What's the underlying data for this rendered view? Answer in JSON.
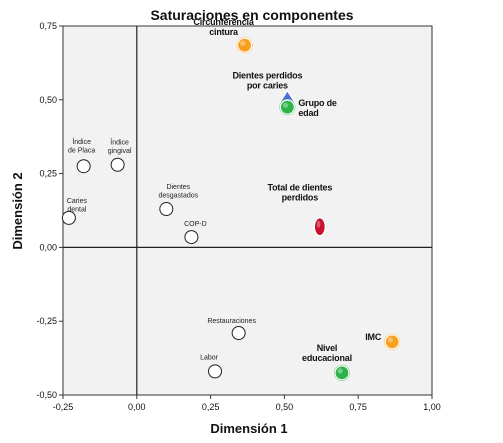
{
  "chart_data": {
    "type": "scatter",
    "title": "Saturaciones en componentes",
    "xlabel": "Dimensión 1",
    "ylabel": "Dimensión 2",
    "xlim": [
      -0.25,
      1.0
    ],
    "ylim": [
      -0.5,
      0.75
    ],
    "x_ticks": [
      "-0,25",
      "0,00",
      "0,25",
      "0,50",
      "0,75",
      "1,00"
    ],
    "y_ticks": [
      "0,75",
      "0,50",
      "0,25",
      "0,00",
      "-0,25",
      "-0,50"
    ],
    "x_tick_values": [
      -0.25,
      0.0,
      0.25,
      0.5,
      0.75,
      1.0
    ],
    "y_tick_values": [
      0.75,
      0.5,
      0.25,
      0.0,
      -0.25,
      -0.5
    ],
    "reference_lines": {
      "x": 0.0,
      "y": 0.0
    },
    "grid": false,
    "colors": {
      "orange": "#F7A01E",
      "green": "#2DB34A",
      "red": "#C8102E",
      "blue": "#4A6FD9",
      "open": "#ffffff",
      "background": "#F2F2F2"
    },
    "points": [
      {
        "label": [
          "Índice",
          "de Placa"
        ],
        "x": -0.18,
        "y": 0.275,
        "marker": "circle-open",
        "label_style": "small",
        "label_pos": "above-left"
      },
      {
        "label": [
          "Índice",
          "gingival"
        ],
        "x": -0.065,
        "y": 0.28,
        "marker": "circle-open",
        "label_style": "small",
        "label_pos": "above"
      },
      {
        "label": [
          "Caries",
          "dental"
        ],
        "x": -0.23,
        "y": 0.1,
        "marker": "circle-open",
        "label_style": "small",
        "label_pos": "above-right"
      },
      {
        "label": [
          "Dientes",
          "desgastados"
        ],
        "x": 0.1,
        "y": 0.13,
        "marker": "circle-open",
        "label_style": "small",
        "label_pos": "above-right"
      },
      {
        "label": [
          "COP-D"
        ],
        "x": 0.185,
        "y": 0.035,
        "marker": "circle-open",
        "label_style": "small",
        "label_pos": "above"
      },
      {
        "label": [
          "Restauraciones"
        ],
        "x": 0.345,
        "y": -0.29,
        "marker": "circle-open",
        "label_style": "small",
        "label_pos": "above-left"
      },
      {
        "label": [
          "Labor"
        ],
        "x": 0.265,
        "y": -0.42,
        "marker": "circle-open",
        "label_style": "small",
        "label_pos": "above-left"
      },
      {
        "label": [
          "Circunferencia",
          "cintura"
        ],
        "x": 0.365,
        "y": 0.685,
        "marker": "circle-orange",
        "label_style": "bold",
        "label_pos": "above-left"
      },
      {
        "label": [
          "Dientes perdidos",
          "por caries"
        ],
        "x": 0.51,
        "y": 0.505,
        "marker": "triangle-blue",
        "label_style": "bold",
        "label_pos": "above-left"
      },
      {
        "label": [
          "Grupo de",
          "edad"
        ],
        "x": 0.51,
        "y": 0.475,
        "marker": "circle-green",
        "label_style": "bold",
        "label_pos": "right"
      },
      {
        "label": [
          "Total de dientes",
          "perdidos"
        ],
        "x": 0.62,
        "y": 0.07,
        "marker": "ellipse-red",
        "label_style": "bold",
        "label_pos": "above-left"
      },
      {
        "label": [
          "IMC"
        ],
        "x": 0.865,
        "y": -0.32,
        "marker": "circle-orange",
        "label_style": "bold",
        "label_pos": "left"
      },
      {
        "label": [
          "Nivel",
          "educacional"
        ],
        "x": 0.695,
        "y": -0.425,
        "marker": "circle-green",
        "label_style": "bold",
        "label_pos": "above-left"
      }
    ]
  }
}
